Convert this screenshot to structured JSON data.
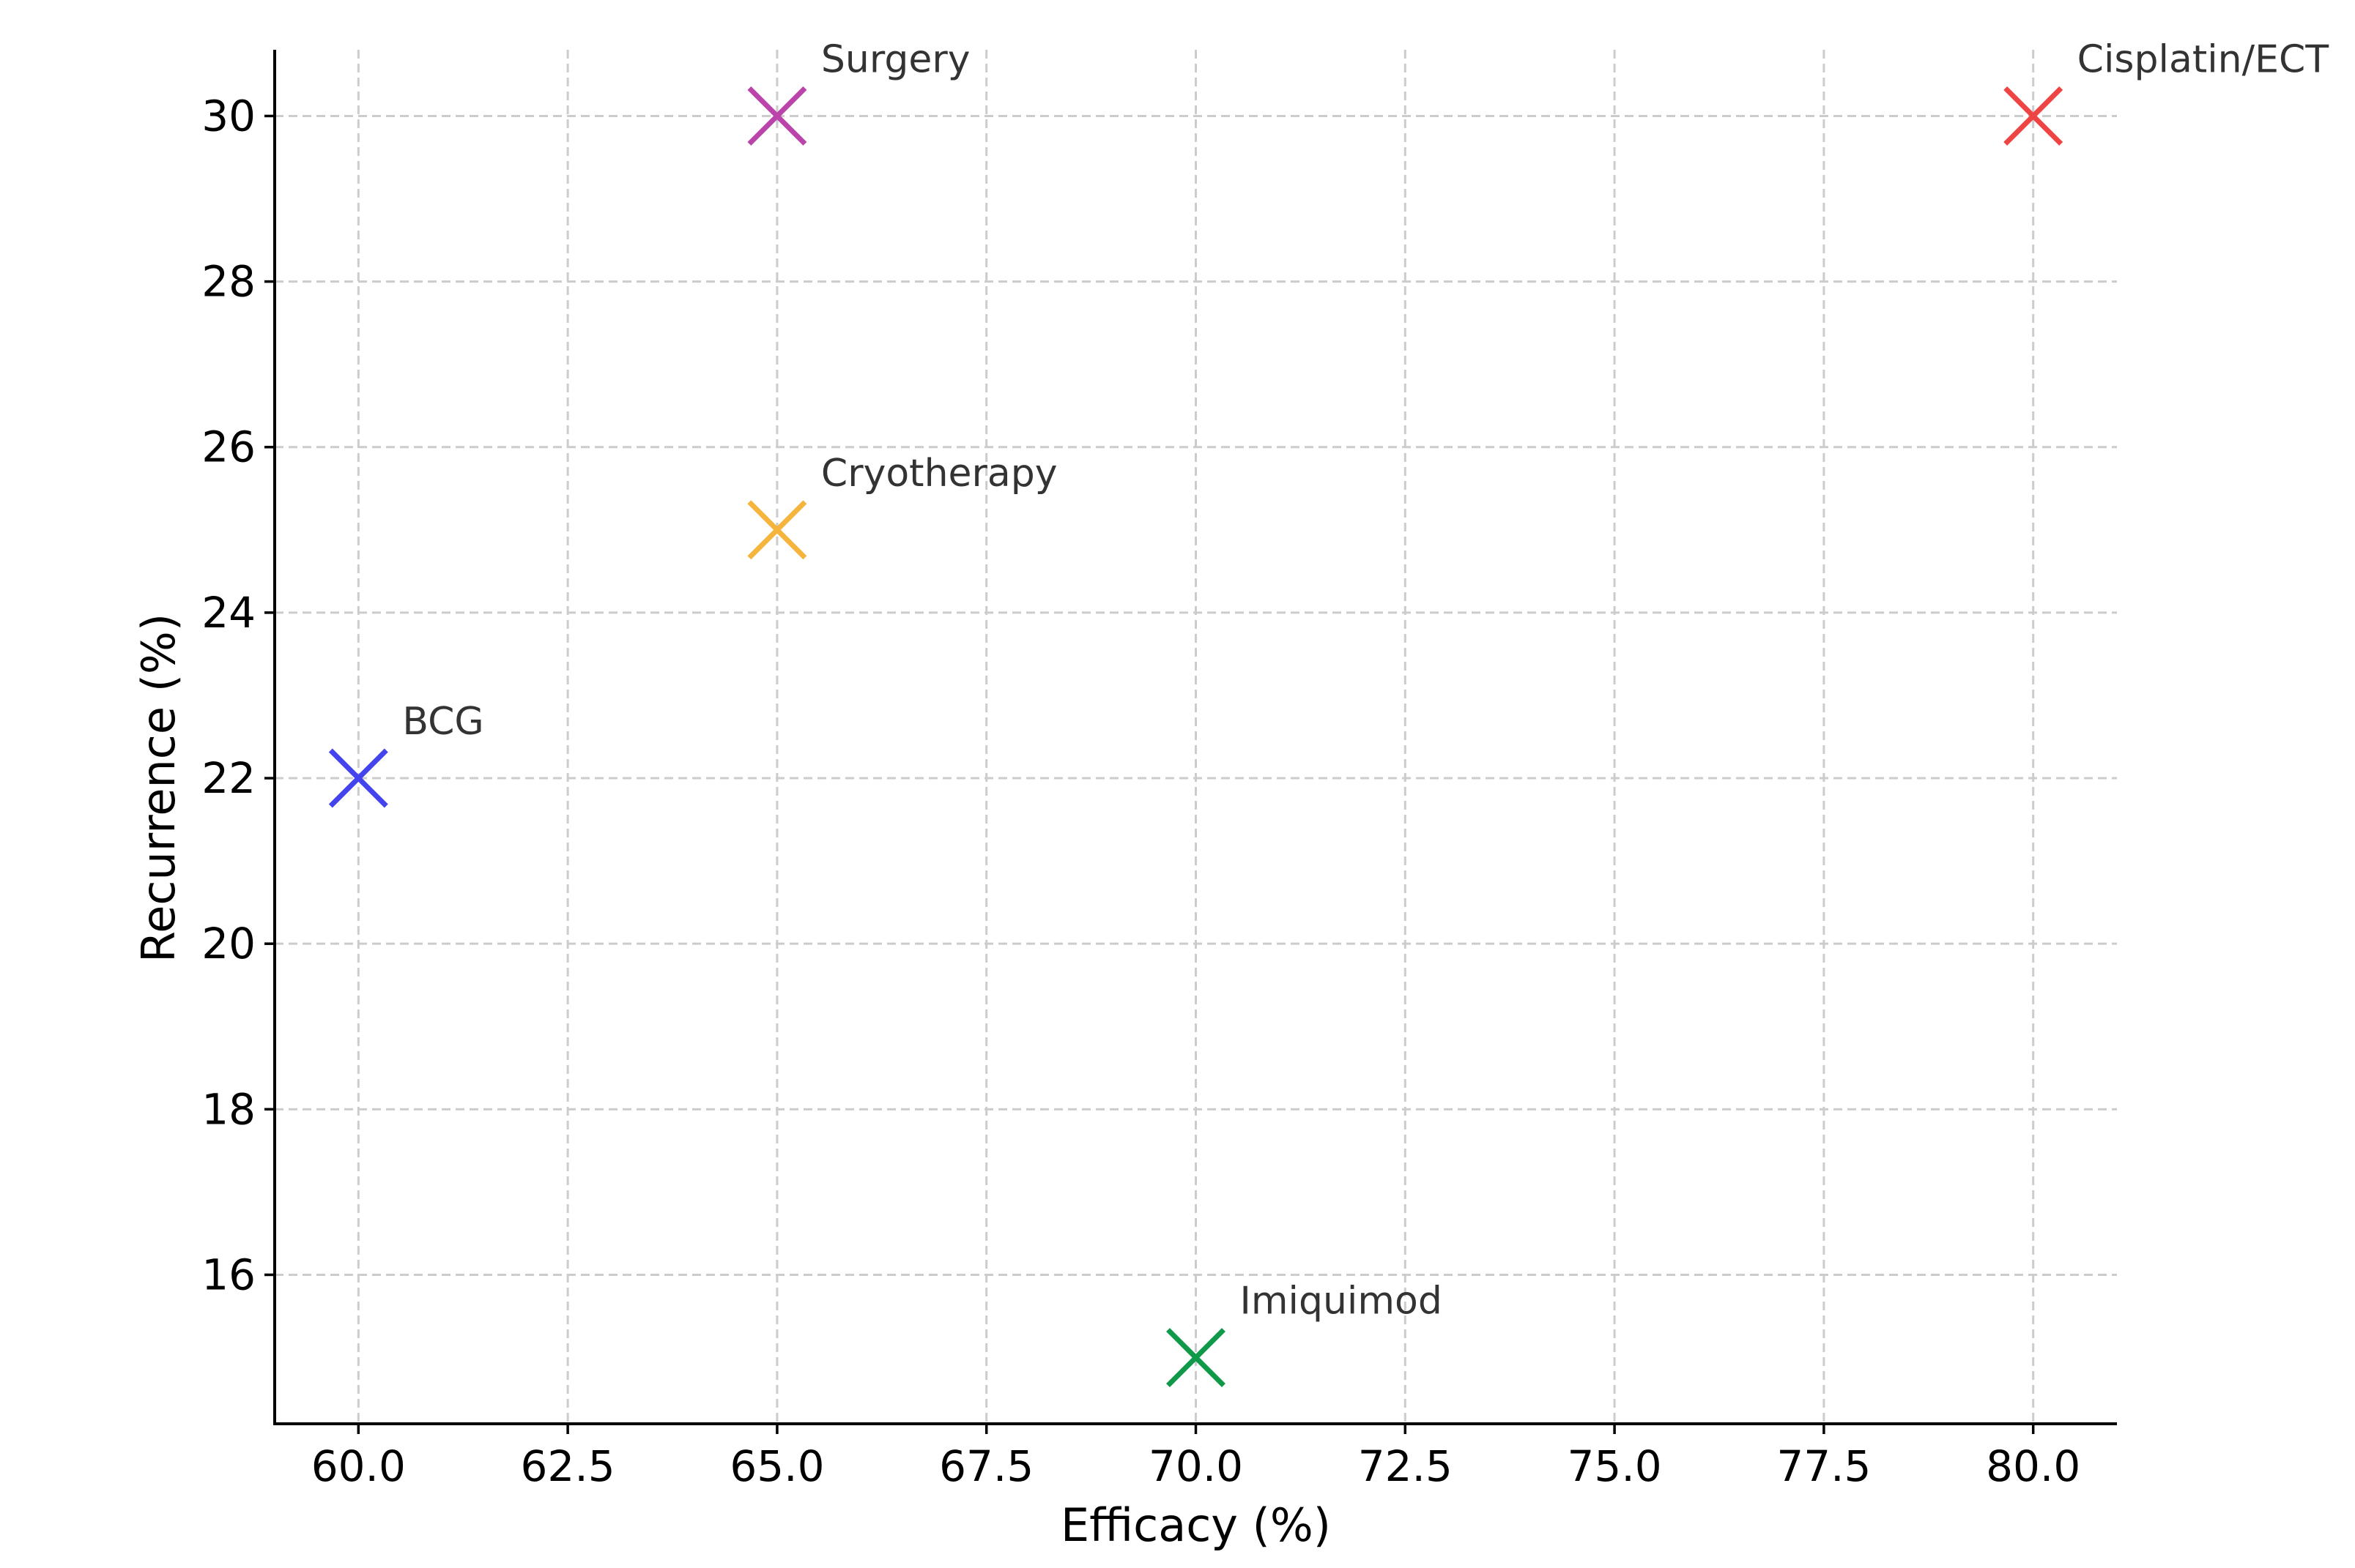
{
  "chart_data": {
    "type": "scatter",
    "title": "",
    "xlabel": "Efficacy (%)",
    "ylabel": "Recurrence (%)",
    "xlim": [
      59,
      81
    ],
    "ylim": [
      14.2,
      30.8
    ],
    "xticks": [
      "60.0",
      "62.5",
      "65.0",
      "67.5",
      "70.0",
      "72.5",
      "75.0",
      "77.5",
      "80.0"
    ],
    "yticks": [
      "16",
      "18",
      "20",
      "22",
      "24",
      "26",
      "28",
      "30"
    ],
    "grid": true,
    "marker": "x",
    "points": [
      {
        "label": "Surgery",
        "x": 65,
        "y": 30,
        "color": "#bb44aa"
      },
      {
        "label": "Cisplatin/ECT",
        "x": 80,
        "y": 30,
        "color": "#ee4444"
      },
      {
        "label": "Cryotherapy",
        "x": 65,
        "y": 25,
        "color": "#f5b43c"
      },
      {
        "label": "BCG",
        "x": 60,
        "y": 22,
        "color": "#4444ee"
      },
      {
        "label": "Imiquimod",
        "x": 70,
        "y": 15,
        "color": "#11994a"
      }
    ]
  }
}
